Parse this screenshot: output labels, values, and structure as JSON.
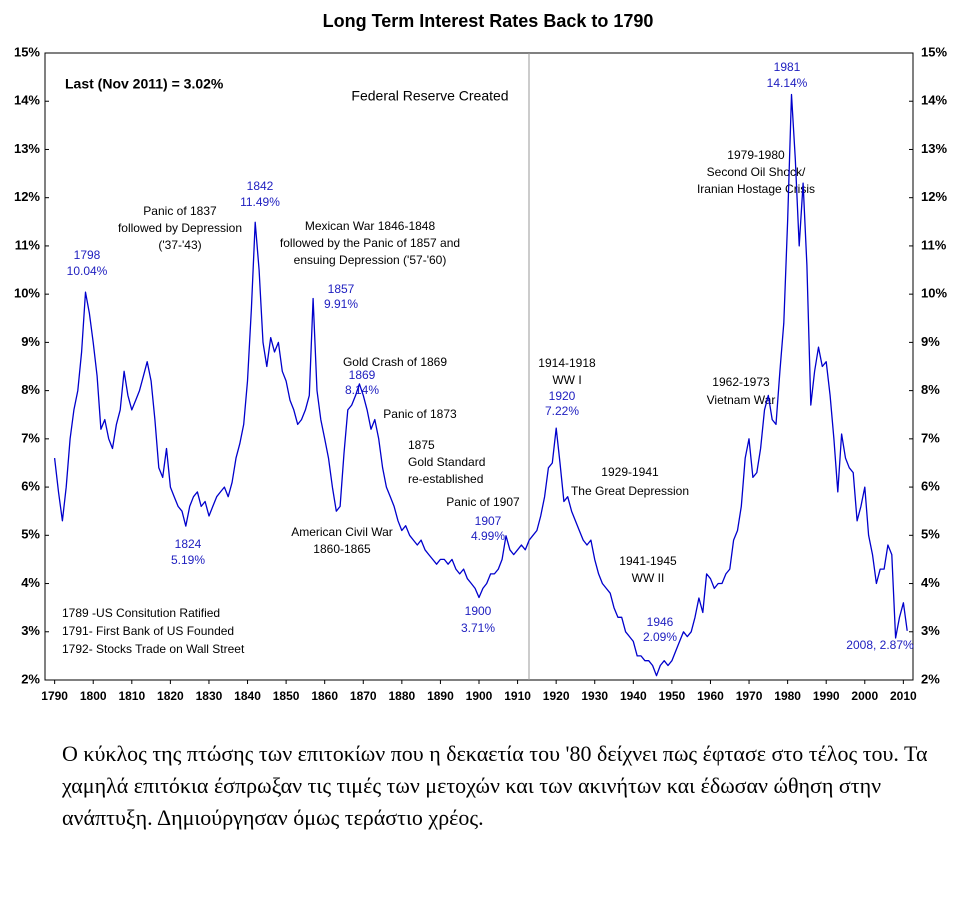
{
  "chart_data": {
    "type": "line",
    "title": "Long Term Interest Rates Back to 1790",
    "color": "#0000cc",
    "x": [
      1790,
      1791,
      1792,
      1793,
      1794,
      1795,
      1796,
      1797,
      1798,
      1799,
      1800,
      1801,
      1802,
      1803,
      1804,
      1805,
      1806,
      1807,
      1808,
      1809,
      1810,
      1811,
      1812,
      1813,
      1814,
      1815,
      1816,
      1817,
      1818,
      1819,
      1820,
      1821,
      1822,
      1823,
      1824,
      1825,
      1826,
      1827,
      1828,
      1829,
      1830,
      1831,
      1832,
      1833,
      1834,
      1835,
      1836,
      1837,
      1838,
      1839,
      1840,
      1841,
      1842,
      1843,
      1844,
      1845,
      1846,
      1847,
      1848,
      1849,
      1850,
      1851,
      1852,
      1853,
      1854,
      1855,
      1856,
      1857,
      1858,
      1859,
      1860,
      1861,
      1862,
      1863,
      1864,
      1865,
      1866,
      1867,
      1868,
      1869,
      1870,
      1871,
      1872,
      1873,
      1874,
      1875,
      1876,
      1877,
      1878,
      1879,
      1880,
      1881,
      1882,
      1883,
      1884,
      1885,
      1886,
      1887,
      1888,
      1889,
      1890,
      1891,
      1892,
      1893,
      1894,
      1895,
      1896,
      1897,
      1898,
      1899,
      1900,
      1901,
      1902,
      1903,
      1904,
      1905,
      1906,
      1907,
      1908,
      1909,
      1910,
      1911,
      1912,
      1913,
      1914,
      1915,
      1916,
      1917,
      1918,
      1919,
      1920,
      1921,
      1922,
      1923,
      1924,
      1925,
      1926,
      1927,
      1928,
      1929,
      1930,
      1931,
      1932,
      1933,
      1934,
      1935,
      1936,
      1937,
      1938,
      1939,
      1940,
      1941,
      1942,
      1943,
      1944,
      1945,
      1946,
      1947,
      1948,
      1949,
      1950,
      1951,
      1952,
      1953,
      1954,
      1955,
      1956,
      1957,
      1958,
      1959,
      1960,
      1961,
      1962,
      1963,
      1964,
      1965,
      1966,
      1967,
      1968,
      1969,
      1970,
      1971,
      1972,
      1973,
      1974,
      1975,
      1976,
      1977,
      1978,
      1979,
      1980,
      1981,
      1982,
      1983,
      1984,
      1985,
      1986,
      1987,
      1988,
      1989,
      1990,
      1991,
      1992,
      1993,
      1994,
      1995,
      1996,
      1997,
      1998,
      1999,
      2000,
      2001,
      2002,
      2003,
      2004,
      2005,
      2006,
      2007,
      2008,
      2009,
      2010,
      2011
    ],
    "values": [
      6.6,
      5.9,
      5.3,
      6.0,
      7.0,
      7.6,
      8.0,
      8.8,
      10.04,
      9.6,
      9.0,
      8.3,
      7.2,
      7.4,
      7.0,
      6.8,
      7.3,
      7.6,
      8.4,
      7.9,
      7.6,
      7.8,
      8.0,
      8.3,
      8.6,
      8.2,
      7.4,
      6.4,
      6.2,
      6.8,
      6.0,
      5.8,
      5.6,
      5.5,
      5.19,
      5.6,
      5.8,
      5.9,
      5.6,
      5.7,
      5.4,
      5.6,
      5.8,
      5.9,
      6.0,
      5.8,
      6.1,
      6.6,
      6.9,
      7.3,
      8.2,
      9.7,
      11.49,
      10.5,
      9.0,
      8.5,
      9.1,
      8.8,
      9.0,
      8.4,
      8.2,
      7.8,
      7.6,
      7.3,
      7.4,
      7.6,
      7.9,
      9.91,
      8.0,
      7.4,
      7.0,
      6.6,
      6.0,
      5.5,
      5.6,
      6.7,
      7.6,
      7.7,
      7.9,
      8.14,
      7.9,
      7.6,
      7.2,
      7.4,
      7.0,
      6.4,
      6.0,
      5.8,
      5.6,
      5.3,
      5.1,
      5.2,
      5.0,
      4.9,
      4.8,
      4.9,
      4.7,
      4.6,
      4.5,
      4.4,
      4.5,
      4.5,
      4.4,
      4.5,
      4.3,
      4.2,
      4.3,
      4.1,
      4.0,
      3.9,
      3.71,
      3.9,
      4.0,
      4.2,
      4.2,
      4.3,
      4.5,
      4.99,
      4.7,
      4.6,
      4.7,
      4.8,
      4.7,
      4.9,
      5.0,
      5.1,
      5.4,
      5.8,
      6.4,
      6.5,
      7.22,
      6.5,
      5.7,
      5.8,
      5.5,
      5.3,
      5.1,
      4.9,
      4.8,
      4.9,
      4.5,
      4.2,
      4.0,
      3.9,
      3.8,
      3.5,
      3.3,
      3.3,
      3.0,
      2.9,
      2.8,
      2.5,
      2.5,
      2.4,
      2.4,
      2.3,
      2.09,
      2.3,
      2.4,
      2.3,
      2.4,
      2.6,
      2.8,
      3.0,
      2.9,
      3.0,
      3.3,
      3.7,
      3.4,
      4.2,
      4.1,
      3.9,
      4.0,
      4.0,
      4.2,
      4.3,
      4.9,
      5.1,
      5.6,
      6.6,
      7.0,
      6.2,
      6.3,
      6.8,
      7.6,
      7.9,
      7.4,
      7.3,
      8.4,
      9.4,
      11.5,
      14.14,
      12.8,
      11.0,
      12.3,
      10.6,
      7.7,
      8.4,
      8.9,
      8.5,
      8.6,
      7.9,
      7.0,
      5.9,
      7.1,
      6.6,
      6.4,
      6.3,
      5.3,
      5.6,
      6.0,
      5.0,
      4.6,
      4.0,
      4.3,
      4.3,
      4.8,
      4.6,
      2.87,
      3.3,
      3.6,
      3.02
    ],
    "xlim": [
      1787.5,
      2012.5
    ],
    "xticks": [
      1790,
      1800,
      1810,
      1820,
      1830,
      1840,
      1850,
      1860,
      1870,
      1880,
      1890,
      1900,
      1910,
      1920,
      1930,
      1940,
      1950,
      1960,
      1970,
      1980,
      1990,
      2000,
      2010
    ],
    "ylim": [
      2,
      15
    ],
    "yticks": [
      {
        "value": 2,
        "label": "2%"
      },
      {
        "value": 3,
        "label": "3%"
      },
      {
        "value": 4,
        "label": "4%"
      },
      {
        "value": 5,
        "label": "5%"
      },
      {
        "value": 6,
        "label": "6%"
      },
      {
        "value": 7,
        "label": "7%"
      },
      {
        "value": 8,
        "label": "8%"
      },
      {
        "value": 9,
        "label": "9%"
      },
      {
        "value": 10,
        "label": "10%"
      },
      {
        "value": 11,
        "label": "11%"
      },
      {
        "value": 12,
        "label": "12%"
      },
      {
        "value": 13,
        "label": "13%"
      },
      {
        "value": 14,
        "label": "14%"
      },
      {
        "value": 15,
        "label": "15%"
      }
    ],
    "annotations": [
      [
        "Last (Nov 2011) = 3.02%"
      ],
      [
        "Federal Reserve Created"
      ],
      [
        "1798",
        "10.04%"
      ],
      [
        "Panic of 1837",
        "followed by Depression",
        "('37-'43)"
      ],
      [
        "1842",
        "11.49%"
      ],
      [
        "Mexican War 1846-1848",
        "followed by the Panic of 1857 and",
        "ensuing Depression ('57-'60)"
      ],
      [
        "1857",
        "9.91%"
      ],
      [
        "Gold Crash of 1869"
      ],
      [
        "1869",
        "8.14%"
      ],
      [
        "Panic of 1873"
      ],
      [
        "1875",
        "Gold Standard",
        "re-established"
      ],
      [
        "Panic of 1907"
      ],
      [
        "1907",
        "4.99%"
      ],
      [
        "American Civil War",
        "1860-1865"
      ],
      [
        "1824",
        "5.19%"
      ],
      [
        "1900",
        "3.71%"
      ],
      [
        "1914-1918",
        "WW I"
      ],
      [
        "1920",
        "7.22%"
      ],
      [
        "1929-1941",
        "The Great Depression"
      ],
      [
        "1941-1945",
        "WW II"
      ],
      [
        "1946",
        "2.09%"
      ],
      [
        "1962-1973",
        "Vietnam War"
      ],
      [
        "1979-1980",
        "Second Oil Shock/",
        "Iranian Hostage Crisis"
      ],
      [
        "1981",
        "14.14%"
      ],
      [
        "2008, 2.87%"
      ],
      [
        "1789 -US Consitution Ratified",
        "1791- First Bank of US Founded",
        "1792- Stocks Trade on Wall Street"
      ]
    ]
  },
  "caption": "Ο κύκλος της πτώσης των επιτοκίων που η δεκαετία του '80 δείχνει πως έφτασε στο τέλος του. Τα χαμηλά επιτόκια έσπρωξαν τις τιμές των μετοχών και των ακινήτων και έδωσαν ώθηση στην ανάπτυξη. Δημιούργησαν όμως τεράστιο χρέος."
}
